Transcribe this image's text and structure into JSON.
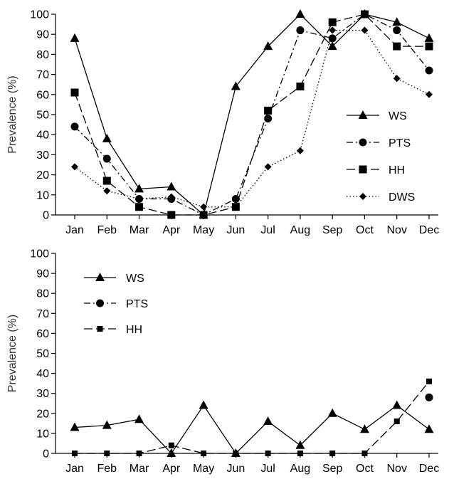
{
  "chart_data": [
    {
      "type": "line",
      "categories": [
        "Jan",
        "Feb",
        "Mar",
        "Apr",
        "May",
        "Jun",
        "Jul",
        "Aug",
        "Sep",
        "Oct",
        "Nov",
        "Dec"
      ],
      "ylabel": "Prevalence (%)",
      "xlabel": "",
      "ylim": [
        0,
        100
      ],
      "yticks": [
        0,
        10,
        20,
        30,
        40,
        50,
        60,
        70,
        80,
        90,
        100
      ],
      "grid": false,
      "legend_position": "right",
      "series": [
        {
          "name": "WS",
          "marker": "triangle",
          "line": "solid",
          "values": [
            88,
            38,
            13,
            14,
            0,
            64,
            84,
            100,
            84,
            100,
            96,
            88
          ]
        },
        {
          "name": "PTS",
          "marker": "circle",
          "line": "dashdot",
          "values": [
            44,
            28,
            8,
            8,
            0,
            8,
            48,
            92,
            88,
            100,
            92,
            72
          ]
        },
        {
          "name": "HH",
          "marker": "square",
          "line": "dashed",
          "values": [
            61,
            17,
            4,
            0,
            0,
            4,
            52,
            64,
            96,
            100,
            84,
            84
          ]
        },
        {
          "name": "DWS",
          "marker": "diamond",
          "line": "dotted",
          "values": [
            24,
            12,
            8,
            9,
            4,
            4,
            24,
            32,
            92,
            92,
            68,
            60
          ]
        }
      ]
    },
    {
      "type": "line",
      "categories": [
        "Jan",
        "Feb",
        "Mar",
        "Apr",
        "May",
        "Jun",
        "Jul",
        "Aug",
        "Sep",
        "Oct",
        "Nov",
        "Dec"
      ],
      "ylabel": "Prevalence (%)",
      "xlabel": "",
      "ylim": [
        0,
        100
      ],
      "yticks": [
        0,
        10,
        20,
        30,
        40,
        50,
        60,
        70,
        80,
        90,
        100
      ],
      "grid": false,
      "legend_position": "top-left",
      "series": [
        {
          "name": "WS",
          "marker": "triangle",
          "line": "solid",
          "values": [
            13,
            14,
            17,
            0,
            24,
            0,
            16,
            4,
            20,
            12,
            24,
            12
          ]
        },
        {
          "name": "PTS",
          "marker": "circle",
          "line": "dashdot",
          "values": [
            null,
            null,
            null,
            null,
            null,
            null,
            null,
            null,
            null,
            null,
            null,
            28
          ]
        },
        {
          "name": "HH",
          "marker": "small-square",
          "line": "dashed",
          "values": [
            0,
            0,
            0,
            4,
            0,
            0,
            0,
            0,
            0,
            0,
            16,
            36
          ]
        }
      ]
    }
  ]
}
